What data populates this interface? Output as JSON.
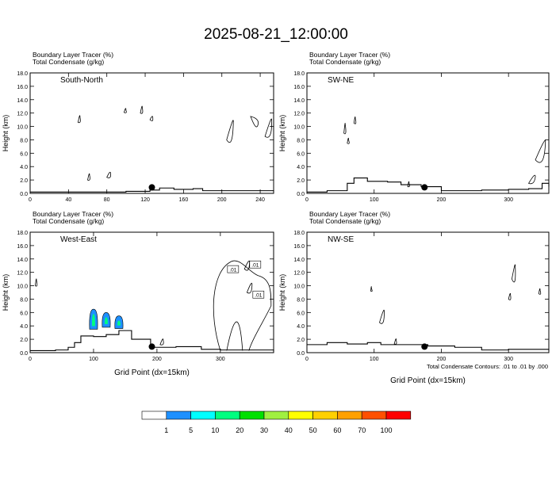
{
  "title": "2025-08-21_12:00:00",
  "footnote": "Total Condensate Contours: .01 to .01 by .000",
  "colorbar": {
    "colors": [
      "#ffffff",
      "#1e90ff",
      "#00ffff",
      "#00ff80",
      "#00e000",
      "#a0f040",
      "#ffff00",
      "#ffd000",
      "#ffa000",
      "#ff5000",
      "#ff0000"
    ],
    "labels": [
      "1",
      "5",
      "10",
      "20",
      "30",
      "40",
      "50",
      "60",
      "70",
      "100"
    ]
  },
  "chart_data": [
    {
      "type": "contour",
      "name": "South-North",
      "field_labels": [
        "Boundary Layer Tracer   (%)",
        "Total Condensate   (g/kg)"
      ],
      "ylabel": "Height (km)",
      "xlabel": "",
      "xlim": [
        0,
        254
      ],
      "ylim": [
        0,
        18
      ],
      "xticks": [
        "0",
        "40",
        "80",
        "120",
        "160",
        "200",
        "240"
      ],
      "yticks": [
        "0.0",
        "2.0",
        "4.0",
        "6.0",
        "8.0",
        "10.0",
        "12.0",
        "14.0",
        "16.0",
        "18.0"
      ],
      "marker_x": 127,
      "terrain": [
        [
          0,
          0.2
        ],
        [
          60,
          0.2
        ],
        [
          100,
          0.3
        ],
        [
          125,
          0.5
        ],
        [
          135,
          0.8
        ],
        [
          150,
          0.6
        ],
        [
          170,
          0.7
        ],
        [
          180,
          0.4
        ],
        [
          254,
          0.3
        ]
      ]
    },
    {
      "type": "contour",
      "name": "SW-NE",
      "field_labels": [
        "Boundary Layer Tracer   (%)",
        "Total Condensate   (g/kg)"
      ],
      "ylabel": "Height (km)",
      "xlabel": "",
      "xlim": [
        0,
        360
      ],
      "ylim": [
        0,
        18
      ],
      "xticks": [
        "0",
        "100",
        "200",
        "300"
      ],
      "yticks": [
        "0.0",
        "2.0",
        "4.0",
        "6.0",
        "8.0",
        "10.0",
        "12.0",
        "14.0",
        "16.0",
        "18.0"
      ],
      "marker_x": 175,
      "terrain": [
        [
          0,
          0.2
        ],
        [
          30,
          0.4
        ],
        [
          60,
          1.5
        ],
        [
          70,
          2.3
        ],
        [
          90,
          1.8
        ],
        [
          120,
          1.7
        ],
        [
          140,
          1.3
        ],
        [
          170,
          1.0
        ],
        [
          200,
          0.4
        ],
        [
          260,
          0.5
        ],
        [
          300,
          0.6
        ],
        [
          330,
          0.7
        ],
        [
          350,
          1.5
        ],
        [
          360,
          1.0
        ]
      ]
    },
    {
      "type": "contour",
      "name": "West-East",
      "field_labels": [
        "Boundary Layer Tracer   (%)",
        "Total Condensate   (g/kg)"
      ],
      "ylabel": "Height (km)",
      "xlabel": "Grid Point (dx=15km)",
      "xlim": [
        0,
        384
      ],
      "ylim": [
        0,
        18
      ],
      "xticks": [
        "0",
        "100",
        "200",
        "300"
      ],
      "yticks": [
        "0.0",
        "2.0",
        "4.0",
        "6.0",
        "8.0",
        "10.0",
        "12.0",
        "14.0",
        "16.0",
        "18.0"
      ],
      "marker_x": 192,
      "contour_labels": [
        ".01",
        ".01",
        ".01"
      ],
      "terrain": [
        [
          0,
          0.3
        ],
        [
          40,
          0.4
        ],
        [
          60,
          0.8
        ],
        [
          70,
          1.5
        ],
        [
          80,
          2.5
        ],
        [
          100,
          2.4
        ],
        [
          120,
          2.7
        ],
        [
          140,
          3.3
        ],
        [
          160,
          2.0
        ],
        [
          190,
          0.8
        ],
        [
          230,
          0.9
        ],
        [
          270,
          0.5
        ],
        [
          300,
          0.4
        ],
        [
          384,
          0.2
        ]
      ]
    },
    {
      "type": "contour",
      "name": "NW-SE",
      "field_labels": [
        "Boundary Layer Tracer   (%)",
        "Total Condensate   (g/kg)"
      ],
      "ylabel": "Height (km)",
      "xlabel": "Grid Point (dx=15km)",
      "xlim": [
        0,
        360
      ],
      "ylim": [
        0,
        18
      ],
      "xticks": [
        "0",
        "100",
        "200",
        "300"
      ],
      "yticks": [
        "0.0",
        "2.0",
        "4.0",
        "6.0",
        "8.0",
        "10.0",
        "12.0",
        "14.0",
        "16.0",
        "18.0"
      ],
      "marker_x": 175,
      "terrain": [
        [
          0,
          1.2
        ],
        [
          30,
          1.5
        ],
        [
          60,
          1.3
        ],
        [
          90,
          1.5
        ],
        [
          110,
          1.2
        ],
        [
          140,
          1.2
        ],
        [
          180,
          1.0
        ],
        [
          220,
          0.8
        ],
        [
          260,
          0.4
        ],
        [
          300,
          0.5
        ],
        [
          360,
          0.3
        ]
      ]
    }
  ]
}
